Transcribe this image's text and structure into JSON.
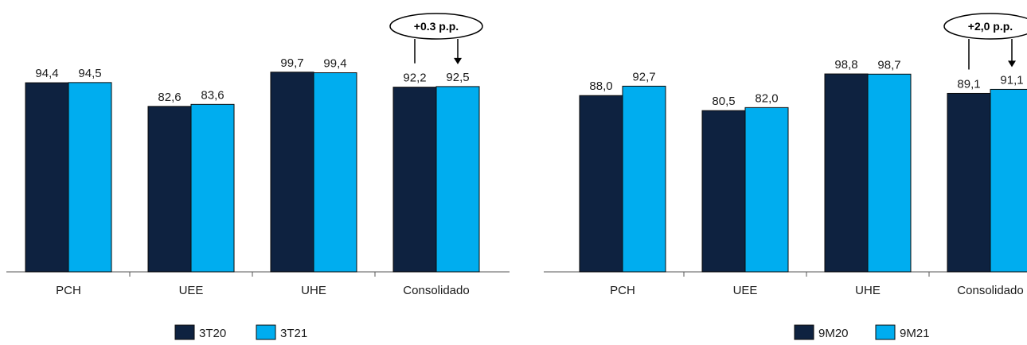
{
  "colors": {
    "dark": "#0e2240",
    "light": "#00adef"
  },
  "chart_data": [
    {
      "type": "bar",
      "categories": [
        "PCH",
        "UEE",
        "UHE",
        "Consolidado"
      ],
      "series": [
        {
          "name": "3T20",
          "values": [
            94.4,
            82.6,
            99.7,
            92.2
          ],
          "labels": [
            "94,4",
            "82,6",
            "99,7",
            "92,2"
          ]
        },
        {
          "name": "3T21",
          "values": [
            94.5,
            83.6,
            99.4,
            92.5
          ],
          "labels": [
            "94,5",
            "83,6",
            "99,4",
            "92,5"
          ]
        }
      ],
      "annotation": "+0.3 p.p.",
      "ylim": [
        0,
        100
      ],
      "grid": false,
      "legend": "bottom"
    },
    {
      "type": "bar",
      "categories": [
        "PCH",
        "UEE",
        "UHE",
        "Consolidado"
      ],
      "series": [
        {
          "name": "9M20",
          "values": [
            88.0,
            80.5,
            98.8,
            89.1
          ],
          "labels": [
            "88,0",
            "80,5",
            "98,8",
            "89,1"
          ]
        },
        {
          "name": "9M21",
          "values": [
            92.7,
            82.0,
            98.7,
            91.1
          ],
          "labels": [
            "92,7",
            "82,0",
            "98,7",
            "91,1"
          ]
        }
      ],
      "annotation": "+2,0 p.p.",
      "ylim": [
        0,
        100
      ],
      "grid": false,
      "legend": "bottom"
    }
  ]
}
